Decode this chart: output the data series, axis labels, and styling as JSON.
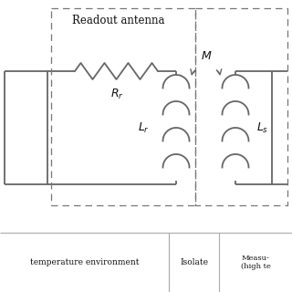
{
  "bg_color": "#ffffff",
  "line_color": "#666666",
  "text_color": "#111111",
  "readout_antenna_label": "Readout antenna",
  "figsize": [
    3.2,
    3.2
  ],
  "dpi": 100,
  "xlim": [
    0,
    320
  ],
  "ylim": [
    0,
    320
  ]
}
